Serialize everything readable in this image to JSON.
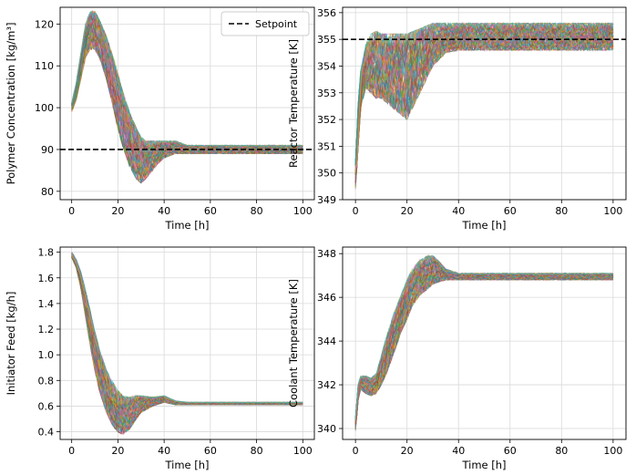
{
  "chart_data": [
    {
      "type": "line",
      "panel": "top-left",
      "xlabel": "Time [h]",
      "ylabel": "Polymer Concentration [kg/m³]",
      "xlim": [
        -5,
        105
      ],
      "ylim": [
        78,
        124
      ],
      "xticks": [
        0,
        20,
        40,
        60,
        80,
        100
      ],
      "yticks": [
        80,
        90,
        100,
        110,
        120
      ],
      "grid": true,
      "legend": {
        "placement": "top-right",
        "entries": [
          "Setpoint"
        ]
      },
      "setpoint": 90,
      "ensemble_envelope": {
        "x": [
          0,
          2,
          4,
          6,
          8,
          10,
          12,
          15,
          18,
          20,
          22,
          25,
          28,
          30,
          32,
          35,
          38,
          40,
          45,
          50,
          60,
          70,
          80,
          90,
          100
        ],
        "y_low": [
          99,
          102,
          107,
          112,
          114,
          114,
          112,
          107,
          100,
          95,
          91,
          86,
          83,
          82,
          83,
          85,
          87,
          88,
          89,
          89,
          89,
          89,
          89,
          89,
          89
        ],
        "y_high": [
          101,
          106,
          113,
          120,
          123,
          123,
          121,
          117,
          112,
          108,
          104,
          99,
          95,
          93,
          92,
          92,
          92,
          92,
          92,
          91,
          91,
          91,
          91,
          91,
          91
        ]
      }
    },
    {
      "type": "line",
      "panel": "top-right",
      "xlabel": "Time [h]",
      "ylabel": "Reactor Temperature [K]",
      "xlim": [
        -5,
        105
      ],
      "ylim": [
        349,
        356.2
      ],
      "xticks": [
        0,
        20,
        40,
        60,
        80,
        100
      ],
      "yticks": [
        349,
        350,
        351,
        352,
        353,
        354,
        355,
        356
      ],
      "grid": true,
      "setpoint": 355,
      "ensemble_envelope": {
        "x": [
          0,
          1,
          2,
          4,
          6,
          8,
          10,
          15,
          20,
          25,
          30,
          35,
          40,
          50,
          60,
          70,
          80,
          90,
          100
        ],
        "y_low": [
          349.4,
          351,
          352.4,
          353.2,
          353.0,
          352.8,
          352.8,
          352.4,
          352.0,
          353.0,
          354.0,
          354.5,
          354.6,
          354.6,
          354.6,
          354.6,
          354.6,
          354.6,
          354.6
        ],
        "y_high": [
          350.3,
          352.5,
          353.8,
          354.8,
          355.2,
          355.3,
          355.2,
          355.2,
          355.2,
          355.4,
          355.6,
          355.6,
          355.6,
          355.6,
          355.6,
          355.6,
          355.6,
          355.6,
          355.6
        ]
      }
    },
    {
      "type": "line",
      "panel": "bottom-left",
      "xlabel": "Time [h]",
      "ylabel": "Initiator Feed [kg/h]",
      "xlim": [
        -5,
        105
      ],
      "ylim": [
        0.34,
        1.84
      ],
      "xticks": [
        0,
        20,
        40,
        60,
        80,
        100
      ],
      "yticks": [
        0.4,
        0.6,
        0.8,
        1.0,
        1.2,
        1.4,
        1.6,
        1.8
      ],
      "grid": true,
      "ensemble_envelope": {
        "x": [
          0,
          2,
          4,
          6,
          8,
          10,
          12,
          15,
          18,
          20,
          22,
          25,
          28,
          30,
          35,
          40,
          45,
          50,
          60,
          70,
          80,
          90,
          100
        ],
        "y_low": [
          1.76,
          1.68,
          1.52,
          1.3,
          1.08,
          0.88,
          0.72,
          0.55,
          0.44,
          0.4,
          0.38,
          0.42,
          0.5,
          0.55,
          0.6,
          0.63,
          0.61,
          0.61,
          0.61,
          0.61,
          0.61,
          0.61,
          0.61
        ],
        "y_high": [
          1.8,
          1.74,
          1.64,
          1.5,
          1.34,
          1.18,
          1.04,
          0.88,
          0.78,
          0.72,
          0.68,
          0.67,
          0.68,
          0.68,
          0.67,
          0.68,
          0.64,
          0.63,
          0.63,
          0.63,
          0.63,
          0.63,
          0.63
        ]
      }
    },
    {
      "type": "line",
      "panel": "bottom-right",
      "xlabel": "Time [h]",
      "ylabel": "Coolant Temperature [K]",
      "xlim": [
        -5,
        105
      ],
      "ylim": [
        339.5,
        348.3
      ],
      "xticks": [
        0,
        20,
        40,
        60,
        80,
        100
      ],
      "yticks": [
        340,
        342,
        344,
        346,
        348
      ],
      "grid": true,
      "ensemble_envelope": {
        "x": [
          0,
          1,
          2,
          4,
          6,
          8,
          10,
          12,
          15,
          18,
          20,
          22,
          25,
          28,
          30,
          32,
          35,
          40,
          45,
          50,
          60,
          70,
          80,
          90,
          100
        ],
        "y_low": [
          339.9,
          341.3,
          341.8,
          341.6,
          341.5,
          341.6,
          342.0,
          342.5,
          343.5,
          344.5,
          345.0,
          345.6,
          346.1,
          346.4,
          346.6,
          346.7,
          346.8,
          346.8,
          346.8,
          346.8,
          346.8,
          346.8,
          346.8,
          346.8,
          346.8
        ],
        "y_high": [
          340.4,
          342.0,
          342.4,
          342.4,
          342.3,
          342.5,
          343.3,
          344.2,
          345.3,
          346.2,
          346.8,
          347.3,
          347.7,
          347.9,
          347.9,
          347.7,
          347.3,
          347.1,
          347.1,
          347.1,
          347.1,
          347.1,
          347.1,
          347.1,
          347.1
        ]
      }
    }
  ]
}
